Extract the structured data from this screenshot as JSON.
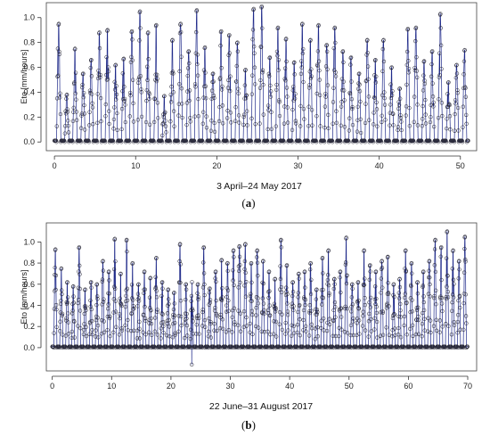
{
  "chart_data": [
    {
      "type": "line",
      "panel_label": "a",
      "xlabel": "3 April–24 May 2017",
      "ylabel": "Eto [mm/hours]",
      "xlim": [
        -1,
        52
      ],
      "ylim": [
        -0.07,
        1.12
      ],
      "xticks": [
        0,
        10,
        20,
        30,
        40,
        50
      ],
      "yticks": [
        0.0,
        0.2,
        0.4,
        0.6,
        0.8,
        1.0
      ],
      "days": 51,
      "daily_peaks": [
        0.95,
        0.38,
        0.75,
        0.55,
        0.66,
        0.88,
        0.9,
        0.62,
        0.67,
        0.89,
        1.05,
        0.88,
        0.94,
        0.37,
        0.82,
        0.95,
        0.73,
        1.06,
        0.76,
        0.55,
        0.89,
        0.86,
        0.8,
        0.58,
        1.07,
        1.09,
        0.68,
        0.92,
        0.83,
        0.64,
        0.95,
        0.82,
        0.94,
        0.78,
        0.92,
        0.73,
        0.68,
        0.55,
        0.82,
        0.66,
        0.82,
        0.6,
        0.43,
        0.91,
        0.92,
        0.65,
        0.73,
        1.03,
        0.48,
        0.62,
        0.74
      ],
      "series": [
        {
          "values_note": "hourly ETo values, one peak per day",
          "color": "#1f2a8a"
        }
      ]
    },
    {
      "type": "line",
      "panel_label": "b",
      "xlabel": "22 June–31 August 2017",
      "ylabel": "Eto [mm/hours]",
      "xlim": [
        -1,
        71.5
      ],
      "ylim": [
        -0.22,
        1.18
      ],
      "xticks": [
        0,
        10,
        20,
        30,
        40,
        50,
        60,
        70
      ],
      "yticks": [
        0.0,
        0.2,
        0.4,
        0.6,
        0.8,
        1.0
      ],
      "days": 70,
      "daily_peaks": [
        0.93,
        0.75,
        0.62,
        0.58,
        0.95,
        0.55,
        0.62,
        0.6,
        0.82,
        0.72,
        1.03,
        0.7,
        1.02,
        0.8,
        0.6,
        0.72,
        0.66,
        0.85,
        0.62,
        0.55,
        0.52,
        0.98,
        0.6,
        0.62,
        0.6,
        0.95,
        0.56,
        0.72,
        0.83,
        0.8,
        0.92,
        0.96,
        0.98,
        0.8,
        0.92,
        0.82,
        0.72,
        0.65,
        1.02,
        0.78,
        0.62,
        0.7,
        0.72,
        0.8,
        0.55,
        0.85,
        0.92,
        0.65,
        0.72,
        1.04,
        0.6,
        0.62,
        0.92,
        0.78,
        0.72,
        0.82,
        0.86,
        0.6,
        0.65,
        0.92,
        0.8,
        0.62,
        0.72,
        0.82,
        1.02,
        0.95,
        1.1,
        0.92,
        0.82,
        1.05
      ],
      "min_outlier": {
        "x": 23.5,
        "y": -0.16
      },
      "series": [
        {
          "values_note": "hourly ETo values, one peak per day",
          "color": "#1f2a8a"
        }
      ]
    }
  ]
}
